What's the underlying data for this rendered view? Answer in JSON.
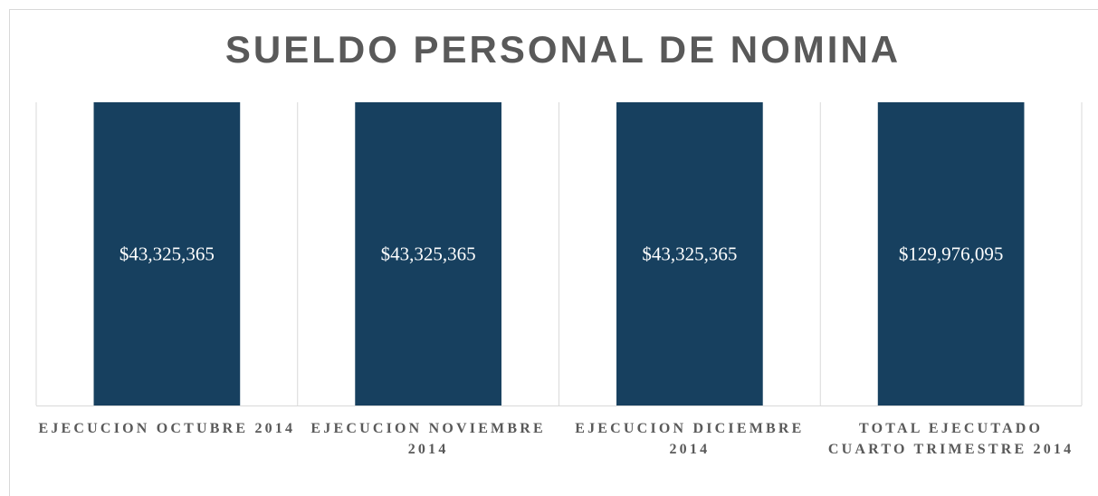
{
  "chart_data": {
    "type": "bar",
    "title": "SUELDO PERSONAL DE  NOMINA",
    "categories": [
      "EJECUCION OCTUBRE 2014",
      "EJECUCION NOVIEMBRE 2014",
      "EJECUCION DICIEMBRE 2014",
      "TOTAL EJECUTADO CUARTO TRIMESTRE 2014"
    ],
    "values": [
      43325365,
      43325365,
      43325365,
      129976095
    ],
    "value_labels": [
      "$43,325,365",
      "$43,325,365",
      "$43,325,365",
      "$129,976,095"
    ],
    "color": "#17405f",
    "ylim": [
      0,
      40000000
    ]
  }
}
